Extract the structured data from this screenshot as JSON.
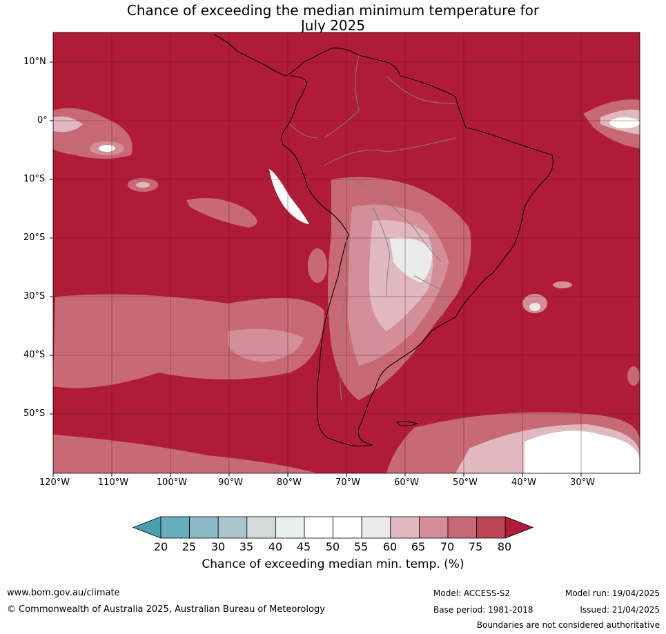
{
  "title_line1": "Chance of exceeding the median minimum temperature for",
  "title_line2": "July 2025",
  "lat_labels": [
    "10°N",
    "0°",
    "10°S",
    "20°S",
    "30°S",
    "40°S",
    "50°S"
  ],
  "lon_labels": [
    "120°W",
    "110°W",
    "100°W",
    "90°W",
    "80°W",
    "70°W",
    "60°W",
    "50°W",
    "40°W",
    "30°W"
  ],
  "colorbar": {
    "ticks": [
      "20",
      "25",
      "30",
      "35",
      "40",
      "45",
      "50",
      "55",
      "60",
      "65",
      "70",
      "75",
      "80"
    ],
    "colors": [
      "#4a9fae",
      "#69adbd",
      "#8cb9c6",
      "#a9c6cc",
      "#d3dadc",
      "#eaf0f2",
      "#ffffff",
      "#ffffff",
      "#ebebec",
      "#e1b8bf",
      "#d48e97",
      "#c86a76",
      "#bd4455",
      "#b01c38"
    ],
    "title": "Chance of exceeding median min. temp. (%)"
  },
  "colors": {
    "dominant": "#b01c38",
    "land_border": "#000000",
    "country_border": "#808080"
  },
  "footer": {
    "website": "www.bom.gov.au/climate",
    "copyright": "© Commonwealth of Australia 2025, Australian Bureau of Meteorology",
    "model": "Model: ACCESS-S2",
    "base_period": "Base period: 1981-2018",
    "model_run": "Model run: 19/04/2025",
    "issued": "Issued: 21/04/2025",
    "disclaimer": "Boundaries are not considered authoritative"
  }
}
